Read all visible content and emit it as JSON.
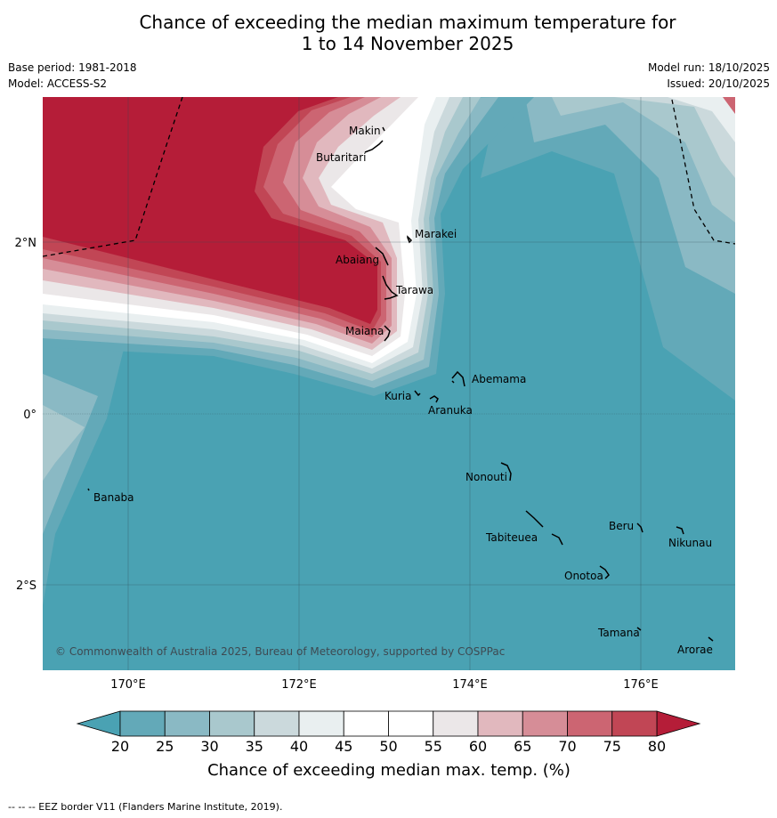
{
  "title_line1": "Chance of exceeding the median maximum temperature for",
  "title_line2": "1 to 14 November 2025",
  "base_period": "Base period: 1981-2018",
  "model": "Model: ACCESS-S2",
  "model_run": "Model run: 18/10/2025",
  "issued": "Issued: 20/10/2025",
  "copyright": "© Commonwealth of Australia 2025, Bureau of Meteorology, supported by COSPPac",
  "footnote": "-- -- -- EEZ border V11 (Flanders Marine Institute, 2019).",
  "lon_ticks": [
    "170°E",
    "172°E",
    "174°E",
    "176°E"
  ],
  "lat_ticks": [
    "2°N",
    "0°",
    "2°S"
  ],
  "places": {
    "makin": "Makin",
    "butaritari": "Butaritari",
    "marakei": "Marakei",
    "abaiang": "Abaiang",
    "tarawa": "Tarawa",
    "maiana": "Maiana",
    "abemama": "Abemama",
    "kuria": "Kuria",
    "aranuka": "Aranuka",
    "nonouti": "Nonouti",
    "banaba": "Banaba",
    "beru": "Beru",
    "nikunau": "Nikunau",
    "tabiteuea": "Tabiteuea",
    "onotoa": "Onotoa",
    "tamana": "Tamana",
    "arorae": "Arorae"
  },
  "colorbar": {
    "title": "Chance of exceeding median max. temp. (%)",
    "ticks": [
      "20",
      "25",
      "30",
      "35",
      "40",
      "45",
      "50",
      "55",
      "60",
      "65",
      "70",
      "75",
      "80"
    ],
    "colors": [
      "#63a9b8",
      "#8ab9c4",
      "#a9c8cd",
      "#cbd9dc",
      "#e9eff0",
      "#ffffff",
      "#ffffff",
      "#ebe7e8",
      "#e1b8be",
      "#d68d97",
      "#cc6572",
      "#c14655"
    ],
    "below_color": "#4aa2b3",
    "above_color": "#b51d38"
  }
}
